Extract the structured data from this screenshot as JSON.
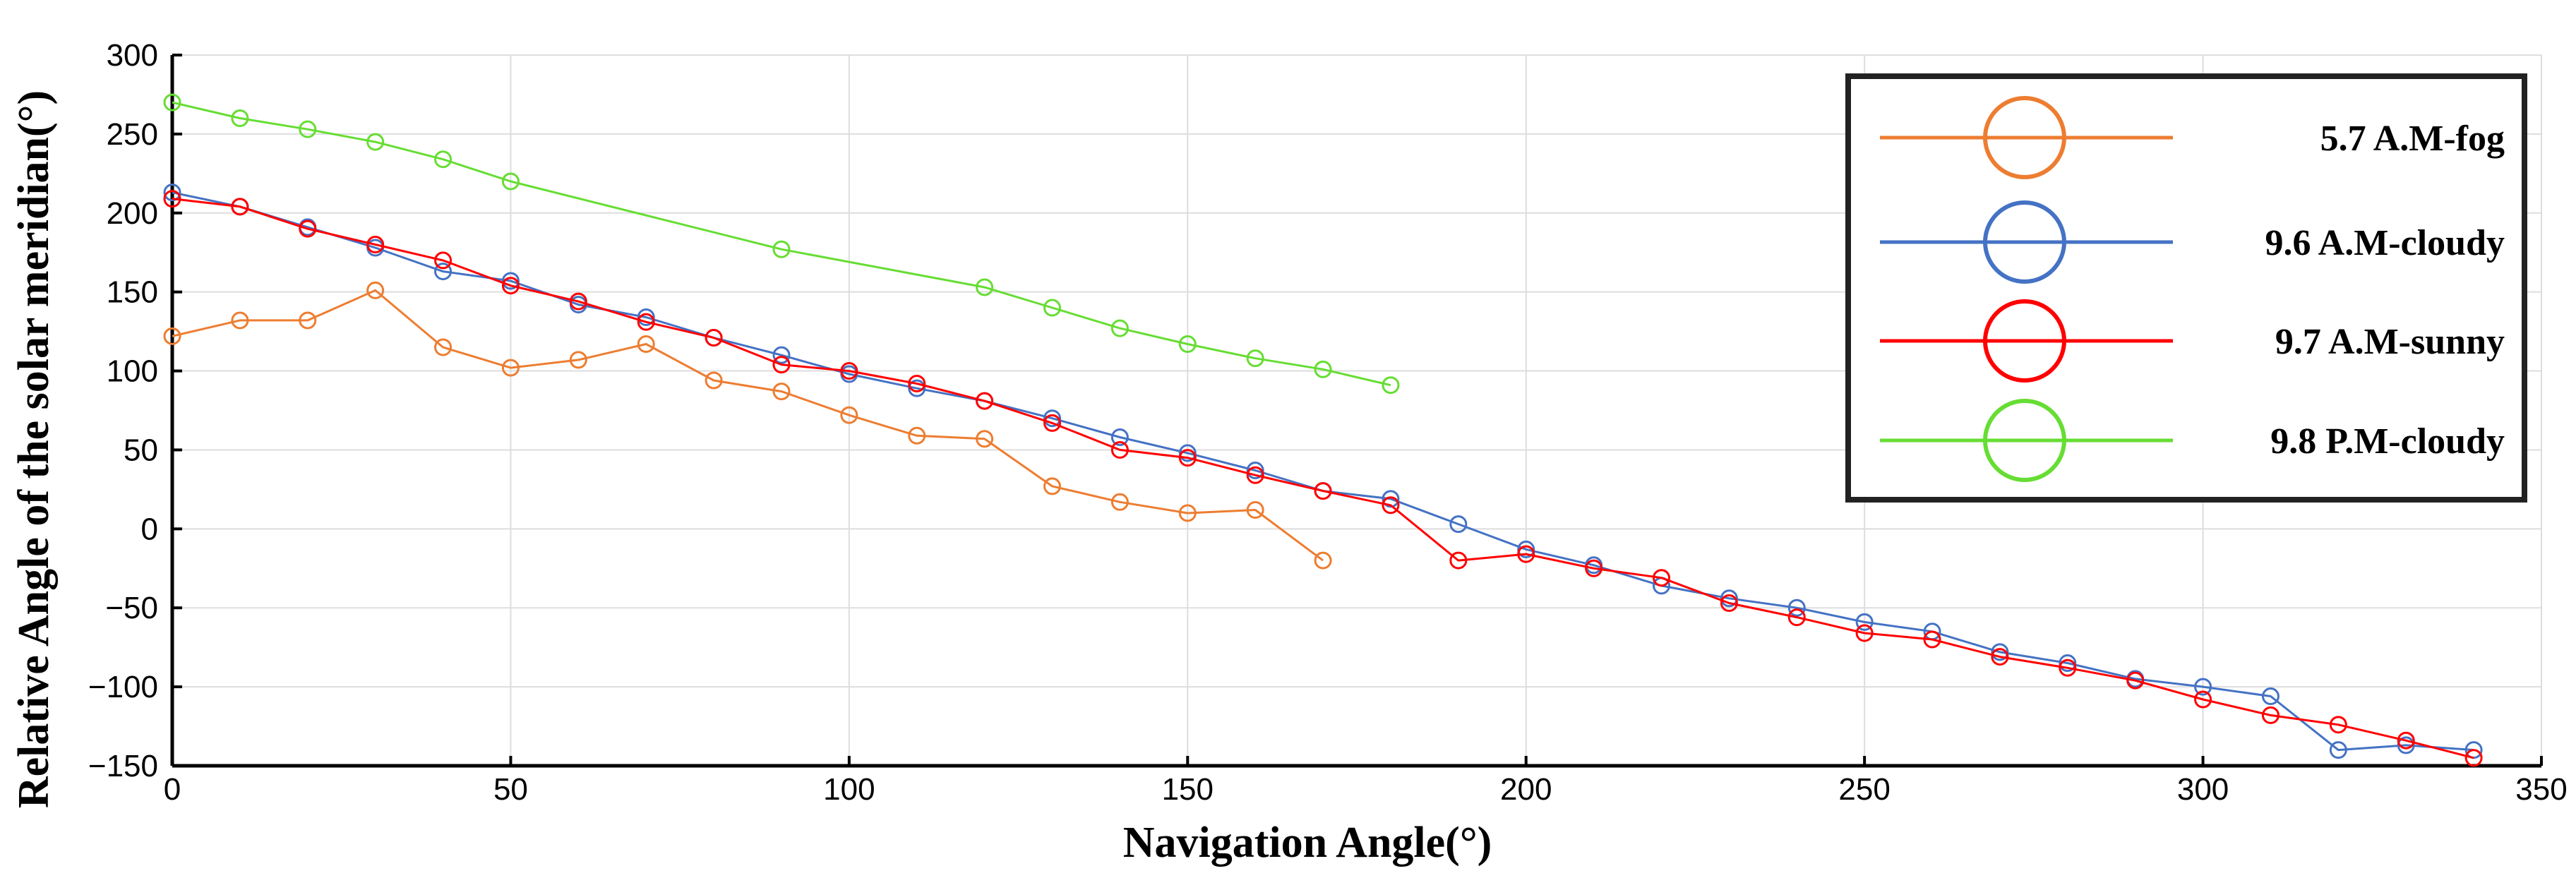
{
  "chart_data": {
    "type": "line",
    "title": "",
    "xlabel": "Navigation Angle(°)",
    "ylabel": "Relative Angle of the solar meridian(°)",
    "xlim": [
      0,
      350
    ],
    "ylim": [
      -150,
      300
    ],
    "xticks": [
      0,
      50,
      100,
      150,
      200,
      250,
      300,
      350
    ],
    "yticks": [
      300,
      250,
      200,
      150,
      100,
      50,
      0,
      -50,
      -100,
      -150
    ],
    "xtick_labels": [
      "0",
      "50",
      "100",
      "150",
      "200",
      "250",
      "300",
      "350"
    ],
    "ytick_labels": [
      "300",
      "250",
      "200",
      "150",
      "100",
      "50",
      "0",
      "−50",
      "−100",
      "−150"
    ],
    "grid": true,
    "legend_position": "top-right",
    "series": [
      {
        "name": "5.7 A.M-fog",
        "color": "#ED7D31",
        "x": [
          0,
          10,
          20,
          30,
          40,
          50,
          60,
          70,
          80,
          90,
          100,
          110,
          120,
          130,
          140,
          150,
          160,
          170
        ],
        "y": [
          122,
          132,
          132,
          151,
          115,
          102,
          107,
          117,
          94,
          87,
          72,
          59,
          57,
          27,
          17,
          10,
          12,
          -20
        ]
      },
      {
        "name": "9.6 A.M-cloudy",
        "color": "#4472C4",
        "x": [
          0,
          10,
          20,
          30,
          40,
          50,
          60,
          70,
          80,
          90,
          100,
          110,
          120,
          130,
          140,
          150,
          160,
          170,
          180,
          190,
          200,
          210,
          220,
          230,
          240,
          250,
          260,
          270,
          280,
          290,
          300,
          310,
          320,
          330,
          340
        ],
        "y": [
          213,
          204,
          191,
          178,
          163,
          157,
          142,
          134,
          121,
          110,
          98,
          89,
          81,
          70,
          58,
          48,
          37,
          24,
          19,
          3,
          -13,
          -23,
          -36,
          -44,
          -50,
          -59,
          -65,
          -78,
          -85,
          -95,
          -100,
          -106,
          -140,
          -137,
          -140
        ]
      },
      {
        "name": "9.7 A.M-sunny",
        "color": "#FF0000",
        "x": [
          0,
          10,
          20,
          30,
          40,
          50,
          60,
          70,
          80,
          90,
          100,
          110,
          120,
          130,
          140,
          150,
          160,
          170,
          180,
          190,
          200,
          210,
          220,
          230,
          240,
          250,
          260,
          270,
          280,
          290,
          300,
          310,
          320,
          330,
          340
        ],
        "y": [
          209,
          204,
          190,
          180,
          170,
          154,
          144,
          131,
          121,
          104,
          100,
          92,
          81,
          67,
          50,
          45,
          34,
          24,
          15,
          -20,
          -16,
          -25,
          -31,
          -47,
          -56,
          -66,
          -70,
          -81,
          -88,
          -96,
          -108,
          -118,
          -124,
          -134,
          -145
        ]
      },
      {
        "name": "9.8 P.M-cloudy",
        "color": "#66DD33",
        "x": [
          0,
          10,
          20,
          30,
          40,
          50,
          90,
          120,
          130,
          140,
          150,
          160,
          170,
          180
        ],
        "y": [
          270,
          260,
          253,
          245,
          234,
          220,
          177,
          153,
          140,
          127,
          117,
          108,
          101,
          91
        ]
      }
    ]
  }
}
